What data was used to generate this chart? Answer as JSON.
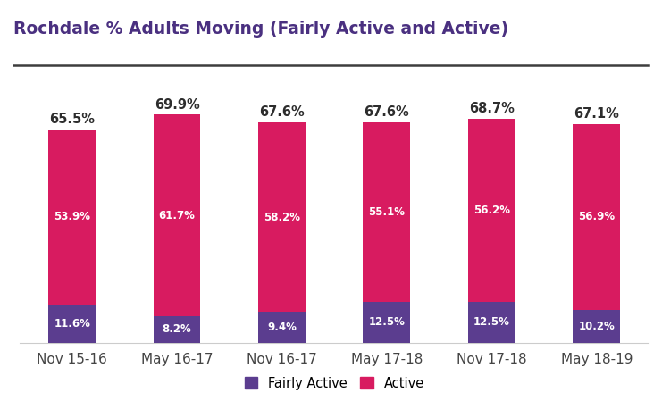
{
  "title": "Rochdale % Adults Moving (Fairly Active and Active)",
  "categories": [
    "Nov 15-16",
    "May 16-17",
    "Nov 16-17",
    "May 17-18",
    "Nov 17-18",
    "May 18-19"
  ],
  "fairly_active": [
    11.6,
    8.2,
    9.4,
    12.5,
    12.5,
    10.2
  ],
  "active": [
    53.9,
    61.7,
    58.2,
    55.1,
    56.2,
    56.9
  ],
  "totals": [
    65.5,
    69.9,
    67.6,
    67.6,
    68.7,
    67.1
  ],
  "fairly_active_color": "#5b3d8f",
  "active_color": "#d81b60",
  "title_color": "#4a3080",
  "label_color_white": "#ffffff",
  "label_color_dark": "#2d2d2d",
  "background_color": "#ffffff",
  "bar_width": 0.45,
  "ylim": [
    0,
    82
  ],
  "legend_labels": [
    "Fairly Active",
    "Active"
  ],
  "title_line_color": "#3d3d3d",
  "xticklabel_color": "#444444",
  "xticklabel_fontsize": 11
}
